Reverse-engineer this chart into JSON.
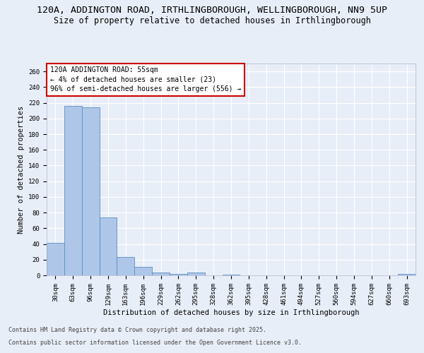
{
  "title_line1": "120A, ADDINGTON ROAD, IRTHLINGBOROUGH, WELLINGBOROUGH, NN9 5UP",
  "title_line2": "Size of property relative to detached houses in Irthlingborough",
  "xlabel": "Distribution of detached houses by size in Irthlingborough",
  "ylabel": "Number of detached properties",
  "bar_labels": [
    "30sqm",
    "63sqm",
    "96sqm",
    "129sqm",
    "163sqm",
    "196sqm",
    "229sqm",
    "262sqm",
    "295sqm",
    "328sqm",
    "362sqm",
    "395sqm",
    "428sqm",
    "461sqm",
    "494sqm",
    "527sqm",
    "560sqm",
    "594sqm",
    "627sqm",
    "660sqm",
    "693sqm"
  ],
  "bar_values": [
    41,
    216,
    214,
    74,
    23,
    11,
    4,
    2,
    4,
    0,
    1,
    0,
    0,
    0,
    0,
    0,
    0,
    0,
    0,
    0,
    2
  ],
  "bar_color": "#aec6e8",
  "bar_edge_color": "#5a8fc0",
  "annotation_text": "120A ADDINGTON ROAD: 55sqm\n← 4% of detached houses are smaller (23)\n96% of semi-detached houses are larger (556) →",
  "annotation_box_color": "#ffffff",
  "annotation_box_edgecolor": "#cc0000",
  "ylim": [
    0,
    270
  ],
  "yticks": [
    0,
    20,
    40,
    60,
    80,
    100,
    120,
    140,
    160,
    180,
    200,
    220,
    240,
    260
  ],
  "background_color": "#e8eef8",
  "plot_background": "#e8eef8",
  "grid_color": "#ffffff",
  "footer_line1": "Contains HM Land Registry data © Crown copyright and database right 2025.",
  "footer_line2": "Contains public sector information licensed under the Open Government Licence v3.0.",
  "title_fontsize": 9.5,
  "subtitle_fontsize": 8.5,
  "label_fontsize": 7.5,
  "tick_fontsize": 6.5,
  "annotation_fontsize": 7,
  "footer_fontsize": 6
}
